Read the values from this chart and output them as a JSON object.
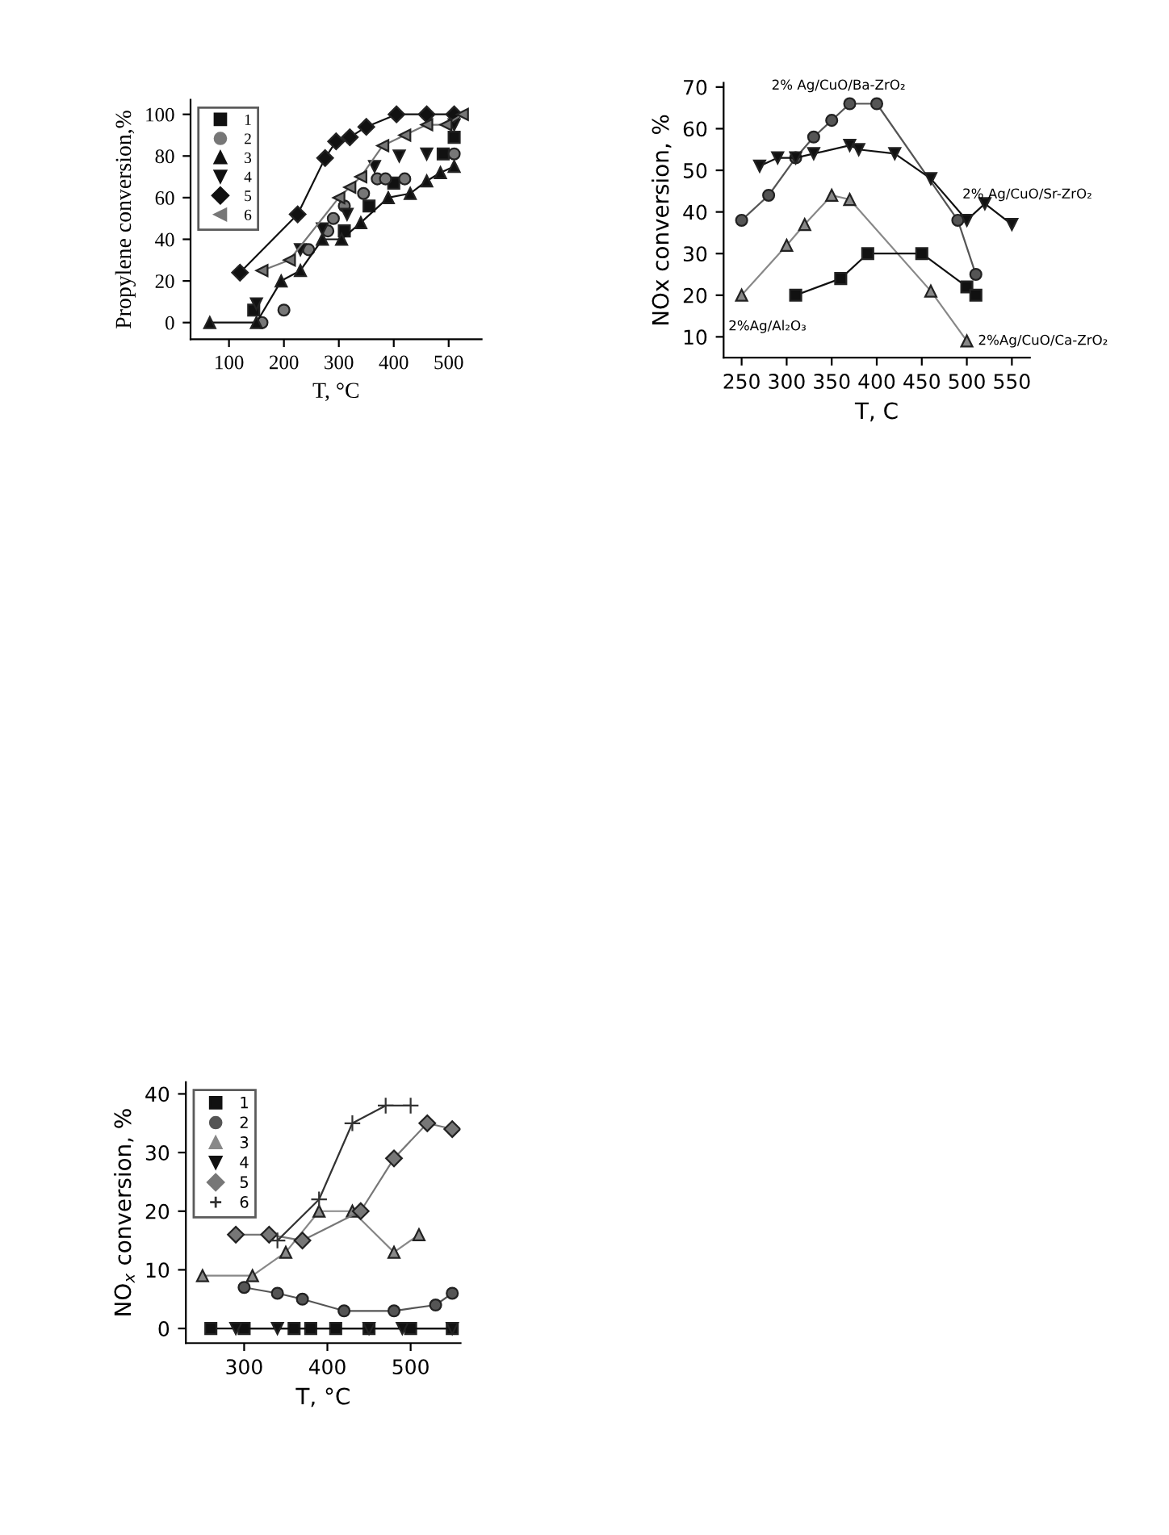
{
  "chart_data": [
    {
      "type": "scatter",
      "xlabel": "T, °C",
      "ylabel": "Propylene conversion,%",
      "xlim": [
        30,
        560
      ],
      "ylim": [
        -8,
        107
      ],
      "xticks": [
        100,
        200,
        300,
        400,
        500
      ],
      "yticks": [
        0,
        20,
        40,
        60,
        80,
        100
      ],
      "legend": "top left",
      "grid": false,
      "series": [
        {
          "name": "1",
          "type": "scatter",
          "marker": "square",
          "color": "#111111",
          "x": [
            145,
            310,
            355,
            400,
            490,
            510
          ],
          "values": [
            6,
            44,
            56,
            67,
            81,
            89
          ]
        },
        {
          "name": "2",
          "type": "scatter",
          "marker": "circle",
          "color": "#777777",
          "x": [
            160,
            200,
            245,
            280,
            290,
            310,
            345,
            370,
            385,
            420,
            510
          ],
          "values": [
            0,
            6,
            35,
            44,
            50,
            56,
            62,
            69,
            69,
            69,
            81
          ]
        },
        {
          "name": "3",
          "type": "line",
          "marker": "triangle",
          "color": "#111111",
          "x": [
            65,
            150,
            195,
            230,
            270,
            305,
            340,
            390,
            430,
            460,
            485,
            510
          ],
          "values": [
            0,
            0,
            20,
            25,
            40,
            40,
            48,
            60,
            62,
            68,
            72,
            75
          ]
        },
        {
          "name": "4",
          "type": "scatter",
          "marker": "triangle_down",
          "color": "#111111",
          "x": [
            150,
            230,
            270,
            315,
            365,
            410,
            460,
            510
          ],
          "values": [
            9,
            35,
            45,
            52,
            75,
            80,
            81,
            95
          ]
        },
        {
          "name": "5",
          "type": "line",
          "marker": "diamond",
          "color": "#111111",
          "x": [
            120,
            225,
            275,
            295,
            320,
            350,
            405,
            460,
            510
          ],
          "values": [
            24,
            52,
            79,
            87,
            89,
            94,
            100,
            100,
            100
          ]
        },
        {
          "name": "6",
          "type": "line",
          "marker": "triangle_left",
          "color": "#777777",
          "x": [
            160,
            210,
            300,
            320,
            340,
            380,
            420,
            460,
            495,
            525
          ],
          "values": [
            25,
            30,
            60,
            65,
            70,
            85,
            90,
            95,
            95,
            100
          ]
        }
      ]
    },
    {
      "type": "line",
      "xlabel": "T, C",
      "ylabel": "NOx conversion, %",
      "xlim": [
        230,
        570
      ],
      "ylim": [
        5,
        71
      ],
      "xticks": [
        250,
        300,
        350,
        400,
        450,
        500,
        550
      ],
      "yticks": [
        10,
        20,
        30,
        40,
        50,
        60,
        70
      ],
      "legend": false,
      "grid": false,
      "series": [
        {
          "name": "2% Ag/CuO/Ba-ZrO₂",
          "marker": "circle",
          "color": "#555555",
          "x": [
            250,
            280,
            310,
            330,
            350,
            370,
            400,
            490,
            510
          ],
          "values": [
            38,
            44,
            53,
            58,
            62,
            66,
            66,
            38,
            25
          ]
        },
        {
          "name": "2% Ag/CuO/Sr-ZrO₂",
          "marker": "triangle_down",
          "color": "#111111",
          "x": [
            270,
            290,
            310,
            330,
            370,
            380,
            420,
            460,
            500,
            520,
            550
          ],
          "values": [
            51,
            53,
            53,
            54,
            56,
            55,
            54,
            48,
            38,
            42,
            37
          ]
        },
        {
          "name": "2%Ag/CuO/Ca-ZrO₂",
          "marker": "triangle",
          "color": "#888888",
          "x": [
            250,
            300,
            320,
            350,
            370,
            460,
            500
          ],
          "values": [
            20,
            32,
            37,
            44,
            43,
            21,
            9
          ]
        },
        {
          "name": "2%Ag/Al₂O₃",
          "marker": "square",
          "color": "#111111",
          "x": [
            310,
            360,
            390,
            450,
            500,
            510
          ],
          "values": [
            20,
            24,
            30,
            30,
            22,
            20
          ]
        }
      ]
    },
    {
      "type": "line",
      "xlabel": "T, °C",
      "ylabel": "NO$_{x}$ conversion, %",
      "xlim": [
        230,
        560
      ],
      "ylim": [
        -2.5,
        42
      ],
      "xticks": [
        300,
        400,
        500
      ],
      "yticks": [
        0,
        10,
        20,
        30,
        40
      ],
      "legend": "top left",
      "grid": false,
      "series": [
        {
          "name": "1",
          "marker": "square",
          "color": "#111111",
          "x": [
            260,
            300,
            360,
            380,
            410,
            450,
            500,
            550
          ],
          "values": [
            0,
            0,
            0,
            0,
            0,
            0,
            0,
            0
          ]
        },
        {
          "name": "2",
          "marker": "circle",
          "color": "#555555",
          "x": [
            300,
            340,
            370,
            420,
            480,
            530,
            550
          ],
          "values": [
            7,
            6,
            5,
            3,
            3,
            4,
            6
          ]
        },
        {
          "name": "3",
          "marker": "triangle",
          "color": "#888888",
          "x": [
            250,
            310,
            350,
            390,
            430,
            480,
            510
          ],
          "values": [
            9,
            9,
            13,
            20,
            20,
            13,
            16
          ]
        },
        {
          "name": "4",
          "marker": "triangle_down",
          "color": "#111111",
          "x": [
            290,
            340,
            450,
            490,
            550
          ],
          "values": [
            0,
            0,
            0,
            0,
            0
          ]
        },
        {
          "name": "5",
          "marker": "diamond",
          "color": "#777777",
          "x": [
            290,
            330,
            370,
            440,
            480,
            520,
            550
          ],
          "values": [
            16,
            16,
            15,
            20,
            29,
            35,
            34
          ]
        },
        {
          "name": "6",
          "marker": "cross",
          "color": "#333333",
          "x": [
            340,
            390,
            430,
            470,
            500
          ],
          "values": [
            15,
            22,
            35,
            38,
            38
          ]
        }
      ]
    }
  ]
}
